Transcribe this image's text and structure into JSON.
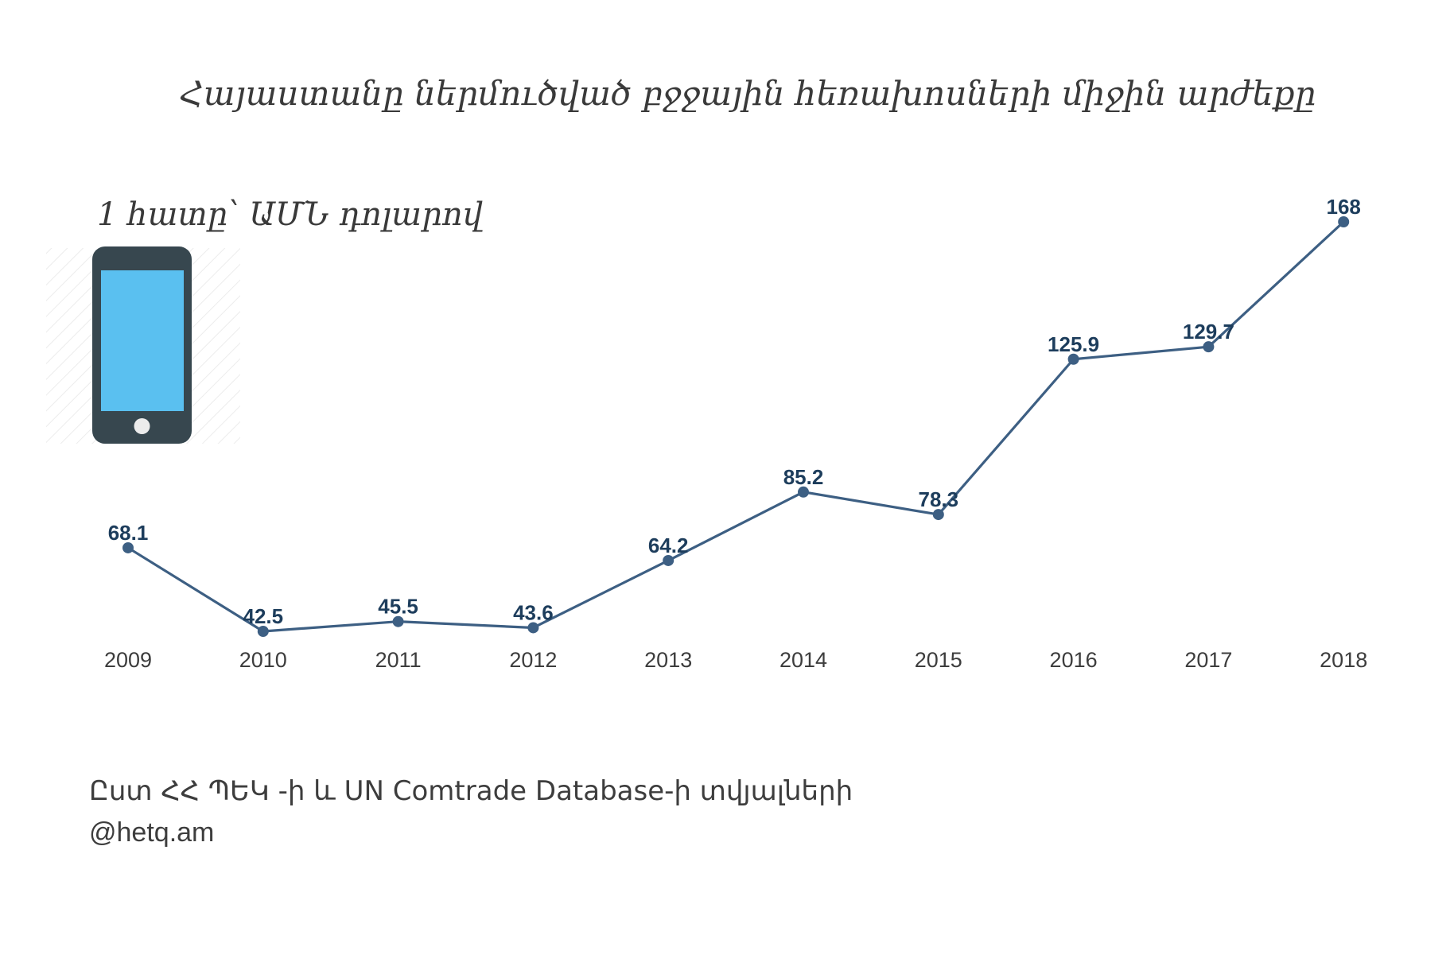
{
  "chart_data": {
    "type": "line",
    "title": "Հայաստանը ներմուծված բջջային հեռախոսների միջին արժեքը",
    "subtitle": "1 հատը՝ ԱՄՆ դոլարով",
    "categories": [
      "2009",
      "2010",
      "2011",
      "2012",
      "2013",
      "2014",
      "2015",
      "2016",
      "2017",
      "2018"
    ],
    "values": [
      68.1,
      42.5,
      45.5,
      43.6,
      64.2,
      85.2,
      78.3,
      125.9,
      129.7,
      168
    ],
    "value_labels": [
      "68.1",
      "42.5",
      "45.5",
      "43.6",
      "64.2",
      "85.2",
      "78.3",
      "125.9",
      "129.7",
      "168"
    ],
    "ylim": [
      40,
      170
    ],
    "grid": false,
    "legend": "none",
    "line_color": "#3d5f83",
    "label_color": "#1d3d5c"
  },
  "footer": {
    "source": "Ըստ ՀՀ ՊԵԿ -ի և UN Comtrade Database-ի տվյալների",
    "credit": "@hetq.am"
  },
  "icon": {
    "name": "mobile-phone-icon",
    "body_color": "#37474f",
    "screen_color": "#5ac0f0"
  }
}
